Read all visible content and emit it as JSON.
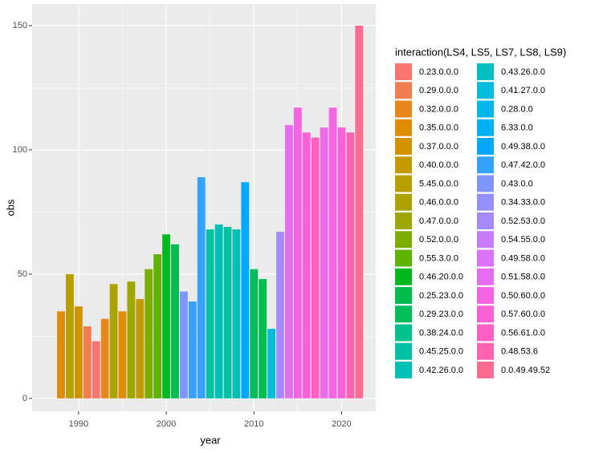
{
  "chart_data": {
    "type": "bar",
    "x_label": "year",
    "y_label": "obs",
    "x": [
      1988,
      1989,
      1990,
      1991,
      1992,
      1993,
      1994,
      1995,
      1996,
      1997,
      1998,
      1999,
      2000,
      2001,
      2002,
      2003,
      2004,
      2005,
      2006,
      2007,
      2008,
      2009,
      2010,
      2011,
      2012,
      2013,
      2014,
      2015,
      2016,
      2017,
      2018,
      2019,
      2020,
      2021,
      2022
    ],
    "values": [
      35,
      50,
      37,
      29,
      23,
      32,
      46,
      35,
      47,
      40,
      52,
      58,
      66,
      62,
      43,
      39,
      89,
      68,
      70,
      69,
      68,
      87,
      52,
      48,
      28,
      67,
      110,
      117,
      107,
      105,
      109,
      117,
      109,
      107,
      150
    ],
    "colors": [
      "#DE8C00",
      "#B79F00",
      "#D39200",
      "#F17D50",
      "#F8766D",
      "#E7861B",
      "#ABA300",
      "#DE8C00",
      "#9CA700",
      "#C49A00",
      "#7CAE00",
      "#5EB300",
      "#00B81F",
      "#00BB4E",
      "#7F96FF",
      "#35A2FF",
      "#35A2FF",
      "#00C1A3",
      "#00C0B5",
      "#00C1A3",
      "#00C0B5",
      "#00A9FF",
      "#00BD5C",
      "#00BB4E",
      "#00BBDB",
      "#A58AFF",
      "#E76BF3",
      "#F564E3",
      "#FB61D7",
      "#FF61C3",
      "#EF67EB",
      "#F564E3",
      "#FA62DB",
      "#FF64B0",
      "#FF6C91"
    ],
    "xlim": [
      1984.7,
      2023.9
    ],
    "xticks": [
      1990,
      2000,
      2010,
      2020
    ],
    "ylim": [
      -5.2,
      158.7
    ],
    "yticks": [
      0,
      50,
      100,
      150
    ],
    "grid": true,
    "legend": {
      "title": "interaction(LS4, LS5, LS7, LS8, LS9)",
      "entries": [
        {
          "name": "0.23.0.0.0",
          "color": "#F8766D"
        },
        {
          "name": "0.29.0.0.0",
          "color": "#F17D50"
        },
        {
          "name": "0.32.0.0.0",
          "color": "#E7861B"
        },
        {
          "name": "0.35.0.0.0",
          "color": "#DE8C00"
        },
        {
          "name": "0.37.0.0.0",
          "color": "#D39200"
        },
        {
          "name": "0.40.0.0.0",
          "color": "#C49A00"
        },
        {
          "name": "5.45.0.0.0",
          "color": "#B79F00"
        },
        {
          "name": "0.46.0.0.0",
          "color": "#ABA300"
        },
        {
          "name": "0.47.0.0.0",
          "color": "#9CA700"
        },
        {
          "name": "0.52.0.0.0",
          "color": "#7CAE00"
        },
        {
          "name": "0.55.3.0.0",
          "color": "#5EB300"
        },
        {
          "name": "0.46.20.0.0",
          "color": "#00B81F"
        },
        {
          "name": "0.25.23.0.0",
          "color": "#00BB4E"
        },
        {
          "name": "0.29.23.0.0",
          "color": "#00BD5C"
        },
        {
          "name": "0.38.24.0.0",
          "color": "#00C08B"
        },
        {
          "name": "0.45.25.0.0",
          "color": "#00C1A3"
        },
        {
          "name": "0.42.26.0.0",
          "color": "#00C0B5"
        },
        {
          "name": "0.43.26.0.0",
          "color": "#00BFC4"
        },
        {
          "name": "0.41.27.0.0",
          "color": "#00BBDB"
        },
        {
          "name": "0.28.0.0",
          "color": "#00B6EB"
        },
        {
          "name": "6.33.0.0",
          "color": "#00B0F6"
        },
        {
          "name": "0.49.38.0.0",
          "color": "#00A9FF"
        },
        {
          "name": "0.47.42.0.0",
          "color": "#35A2FF"
        },
        {
          "name": "0.43.0.0",
          "color": "#7F96FF"
        },
        {
          "name": "0.34.33.0.0",
          "color": "#9590FF"
        },
        {
          "name": "0.52.53.0.0",
          "color": "#A58AFF"
        },
        {
          "name": "0.54.55.0.0",
          "color": "#C77CFF"
        },
        {
          "name": "0.49.58.0.0",
          "color": "#DB72FB"
        },
        {
          "name": "0.51.58.0.0",
          "color": "#E76BF3"
        },
        {
          "name": "0.50.60.0.0",
          "color": "#F564E3"
        },
        {
          "name": "0.57.60.0.0",
          "color": "#FB61D7"
        },
        {
          "name": "0.56.61.0.0",
          "color": "#FF61C3"
        },
        {
          "name": "0.48.53.6",
          "color": "#FF64B0"
        },
        {
          "name": "0.0.49.49.52",
          "color": "#FF6C91"
        }
      ]
    }
  }
}
